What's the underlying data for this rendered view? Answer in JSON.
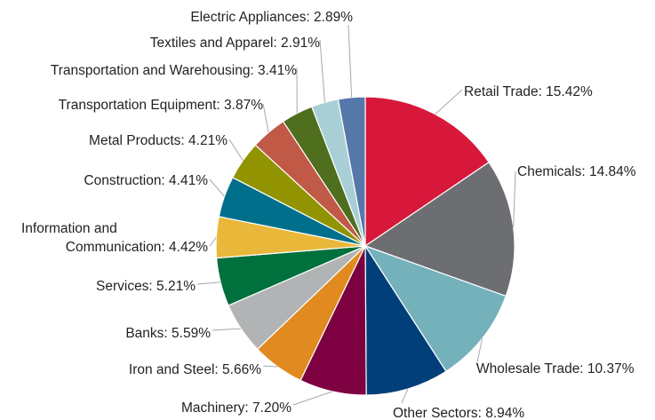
{
  "chart_data": {
    "type": "pie",
    "title": "",
    "unit": "%",
    "slices": [
      {
        "label": "Retail Trade: 15.42%",
        "name": "Retail Trade",
        "value": 15.42,
        "color": "#d7183b"
      },
      {
        "label": "Chemicals: 14.84%",
        "name": "Chemicals",
        "value": 14.84,
        "color": "#6d6e71"
      },
      {
        "label": "Wholesale Trade: 10.37%",
        "name": "Wholesale Trade",
        "value": 10.37,
        "color": "#74b1bb"
      },
      {
        "label": "Other Sectors: 8.94%",
        "name": "Other Sectors",
        "value": 8.94,
        "color": "#003f7a"
      },
      {
        "label": "Machinery: 7.20%",
        "name": "Machinery",
        "value": 7.2,
        "color": "#7d0040"
      },
      {
        "label": "Iron and Steel: 5.66%",
        "name": "Iron and Steel",
        "value": 5.66,
        "color": "#e08a1f"
      },
      {
        "label": "Banks: 5.59%",
        "name": "Banks",
        "value": 5.59,
        "color": "#b1b3b5"
      },
      {
        "label": "Services: 5.21%",
        "name": "Services",
        "value": 5.21,
        "color": "#00703c"
      },
      {
        "label": "Information and Communication: 4.42%",
        "name": "Information and Communication",
        "value": 4.42,
        "color": "#e9b73a"
      },
      {
        "label": "Construction: 4.41%",
        "name": "Construction",
        "value": 4.41,
        "color": "#006f8c"
      },
      {
        "label": "Metal Products: 4.21%",
        "name": "Metal Products",
        "value": 4.21,
        "color": "#929300"
      },
      {
        "label": "Transportation Equipment: 3.87%",
        "name": "Transportation Equipment",
        "value": 3.87,
        "color": "#c05a47"
      },
      {
        "label": "Transportation and Warehousing: 3.41%",
        "name": "Transportation and Warehousing",
        "value": 3.41,
        "color": "#4f6e1e"
      },
      {
        "label": "Textiles and Apparel: 2.91%",
        "name": "Textiles and Apparel",
        "value": 2.91,
        "color": "#a9cfd6"
      },
      {
        "label": "Electric Appliances: 2.89%",
        "name": "Electric Appliances",
        "value": 2.89,
        "color": "#5677aa"
      }
    ]
  }
}
